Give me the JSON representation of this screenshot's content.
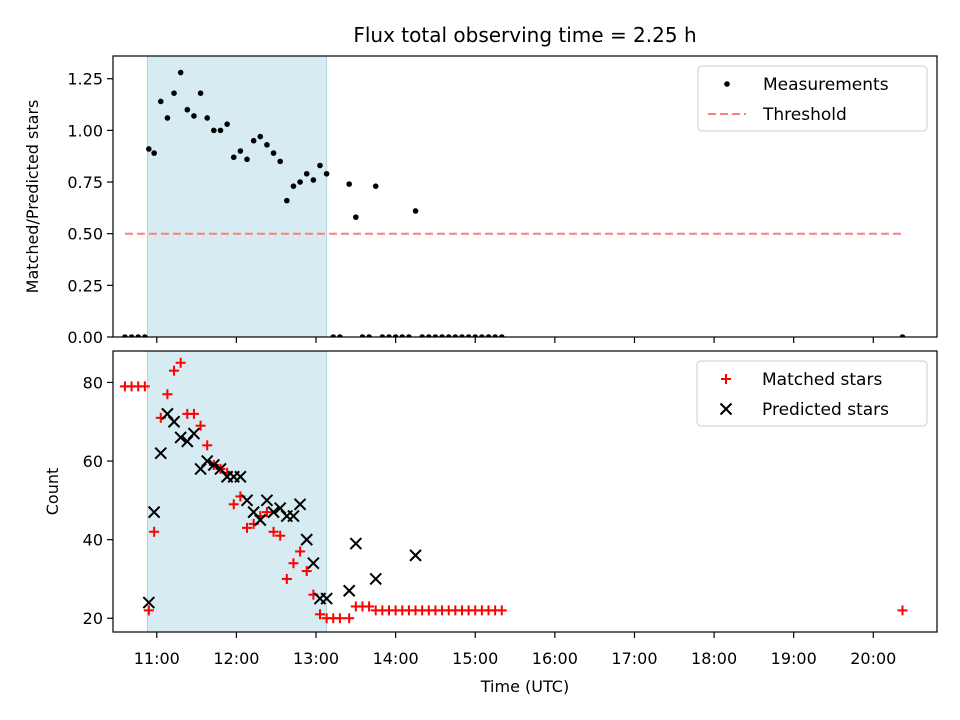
{
  "chart_data": {
    "title": "Flux total observing time = 2.25 h",
    "xlabel": "Time (UTC)",
    "xlim": [
      "10:27",
      "20:48"
    ],
    "xticks": [
      "11:00",
      "12:00",
      "13:00",
      "14:00",
      "15:00",
      "16:00",
      "17:00",
      "18:00",
      "19:00",
      "20:00"
    ],
    "observing_window": [
      "10:53",
      "13:08"
    ],
    "window_color": "#add8e6",
    "subplots": [
      {
        "type": "scatter",
        "ylabel": "Matched/Predicted stars",
        "ylim": [
          0,
          1.36
        ],
        "yticks": [
          "0.00",
          "0.25",
          "0.50",
          "0.75",
          "1.00",
          "1.25"
        ],
        "legend_position": "upper right",
        "series": [
          {
            "name": "Measurements",
            "marker": "dot",
            "color": "#000000",
            "points": [
              [
                "10:36",
                0
              ],
              [
                "10:41",
                0
              ],
              [
                "10:46",
                0
              ],
              [
                "10:51",
                0
              ],
              [
                "10:54",
                0.91
              ],
              [
                "10:58",
                0.89
              ],
              [
                "11:03",
                1.14
              ],
              [
                "11:08",
                1.06
              ],
              [
                "11:13",
                1.18
              ],
              [
                "11:18",
                1.28
              ],
              [
                "11:23",
                1.1
              ],
              [
                "11:28",
                1.07
              ],
              [
                "11:33",
                1.18
              ],
              [
                "11:38",
                1.06
              ],
              [
                "11:43",
                1.0
              ],
              [
                "11:48",
                1.0
              ],
              [
                "11:53",
                1.03
              ],
              [
                "11:58",
                0.87
              ],
              [
                "12:03",
                0.9
              ],
              [
                "12:08",
                0.86
              ],
              [
                "12:13",
                0.95
              ],
              [
                "12:18",
                0.97
              ],
              [
                "12:23",
                0.93
              ],
              [
                "12:28",
                0.89
              ],
              [
                "12:33",
                0.85
              ],
              [
                "12:38",
                0.66
              ],
              [
                "12:43",
                0.73
              ],
              [
                "12:48",
                0.75
              ],
              [
                "12:53",
                0.79
              ],
              [
                "12:58",
                0.76
              ],
              [
                "13:03",
                0.83
              ],
              [
                "13:08",
                0.79
              ],
              [
                "13:13",
                0
              ],
              [
                "13:18",
                0
              ],
              [
                "13:25",
                0.74
              ],
              [
                "13:30",
                0.58
              ],
              [
                "13:35",
                0
              ],
              [
                "13:40",
                0
              ],
              [
                "13:45",
                0.73
              ],
              [
                "13:50",
                0
              ],
              [
                "13:55",
                0
              ],
              [
                "14:00",
                0
              ],
              [
                "14:05",
                0
              ],
              [
                "14:10",
                0
              ],
              [
                "14:15",
                0.61
              ],
              [
                "14:20",
                0
              ],
              [
                "14:25",
                0
              ],
              [
                "14:30",
                0
              ],
              [
                "14:35",
                0
              ],
              [
                "14:40",
                0
              ],
              [
                "14:45",
                0
              ],
              [
                "14:50",
                0
              ],
              [
                "14:55",
                0
              ],
              [
                "15:00",
                0
              ],
              [
                "15:05",
                0
              ],
              [
                "15:10",
                0
              ],
              [
                "15:15",
                0
              ],
              [
                "15:20",
                0
              ],
              [
                "20:22",
                0
              ]
            ]
          },
          {
            "name": "Threshold",
            "type": "line",
            "style": "dashed",
            "color": "#ff7f7f",
            "points": [
              [
                "10:36",
                0.5
              ],
              [
                "20:22",
                0.5
              ]
            ]
          }
        ]
      },
      {
        "type": "scatter",
        "ylabel": "Count",
        "ylim": [
          16.5,
          88
        ],
        "yticks": [
          "20",
          "40",
          "60",
          "80"
        ],
        "legend_position": "upper right",
        "series": [
          {
            "name": "Matched stars",
            "marker": "plus",
            "color": "#ff0000",
            "points": [
              [
                "10:36",
                79
              ],
              [
                "10:41",
                79
              ],
              [
                "10:46",
                79
              ],
              [
                "10:51",
                79
              ],
              [
                "10:54",
                22
              ],
              [
                "10:58",
                42
              ],
              [
                "11:03",
                71
              ],
              [
                "11:08",
                77
              ],
              [
                "11:13",
                83
              ],
              [
                "11:18",
                85
              ],
              [
                "11:23",
                72
              ],
              [
                "11:28",
                72
              ],
              [
                "11:33",
                69
              ],
              [
                "11:38",
                64
              ],
              [
                "11:43",
                59
              ],
              [
                "11:48",
                58
              ],
              [
                "11:53",
                57
              ],
              [
                "11:58",
                49
              ],
              [
                "12:03",
                51
              ],
              [
                "12:08",
                43
              ],
              [
                "12:13",
                44
              ],
              [
                "12:18",
                46
              ],
              [
                "12:23",
                47
              ],
              [
                "12:28",
                42
              ],
              [
                "12:33",
                41
              ],
              [
                "12:38",
                30
              ],
              [
                "12:43",
                34
              ],
              [
                "12:48",
                37
              ],
              [
                "12:53",
                32
              ],
              [
                "12:58",
                26
              ],
              [
                "13:03",
                21
              ],
              [
                "13:08",
                20
              ],
              [
                "13:13",
                20
              ],
              [
                "13:18",
                20
              ],
              [
                "13:25",
                20
              ],
              [
                "13:30",
                23
              ],
              [
                "13:35",
                23
              ],
              [
                "13:40",
                23
              ],
              [
                "13:45",
                22
              ],
              [
                "13:50",
                22
              ],
              [
                "13:55",
                22
              ],
              [
                "14:00",
                22
              ],
              [
                "14:05",
                22
              ],
              [
                "14:10",
                22
              ],
              [
                "14:15",
                22
              ],
              [
                "14:20",
                22
              ],
              [
                "14:25",
                22
              ],
              [
                "14:30",
                22
              ],
              [
                "14:35",
                22
              ],
              [
                "14:40",
                22
              ],
              [
                "14:45",
                22
              ],
              [
                "14:50",
                22
              ],
              [
                "14:55",
                22
              ],
              [
                "15:00",
                22
              ],
              [
                "15:05",
                22
              ],
              [
                "15:10",
                22
              ],
              [
                "15:15",
                22
              ],
              [
                "15:20",
                22
              ],
              [
                "20:22",
                22
              ]
            ]
          },
          {
            "name": "Predicted stars",
            "marker": "x",
            "color": "#000000",
            "points": [
              [
                "10:54",
                24
              ],
              [
                "10:58",
                47
              ],
              [
                "11:03",
                62
              ],
              [
                "11:08",
                72
              ],
              [
                "11:13",
                70
              ],
              [
                "11:18",
                66
              ],
              [
                "11:23",
                65
              ],
              [
                "11:28",
                67
              ],
              [
                "11:33",
                58
              ],
              [
                "11:38",
                60
              ],
              [
                "11:43",
                59
              ],
              [
                "11:48",
                58
              ],
              [
                "11:53",
                56
              ],
              [
                "11:58",
                56
              ],
              [
                "12:03",
                56
              ],
              [
                "12:08",
                50
              ],
              [
                "12:13",
                47
              ],
              [
                "12:18",
                45
              ],
              [
                "12:23",
                50
              ],
              [
                "12:28",
                47
              ],
              [
                "12:33",
                48
              ],
              [
                "12:38",
                46
              ],
              [
                "12:43",
                46
              ],
              [
                "12:48",
                49
              ],
              [
                "12:53",
                40
              ],
              [
                "12:58",
                34
              ],
              [
                "13:03",
                25
              ],
              [
                "13:08",
                25
              ],
              [
                "13:25",
                27
              ],
              [
                "13:30",
                39
              ],
              [
                "13:45",
                30
              ],
              [
                "14:15",
                36
              ]
            ]
          }
        ]
      }
    ]
  }
}
